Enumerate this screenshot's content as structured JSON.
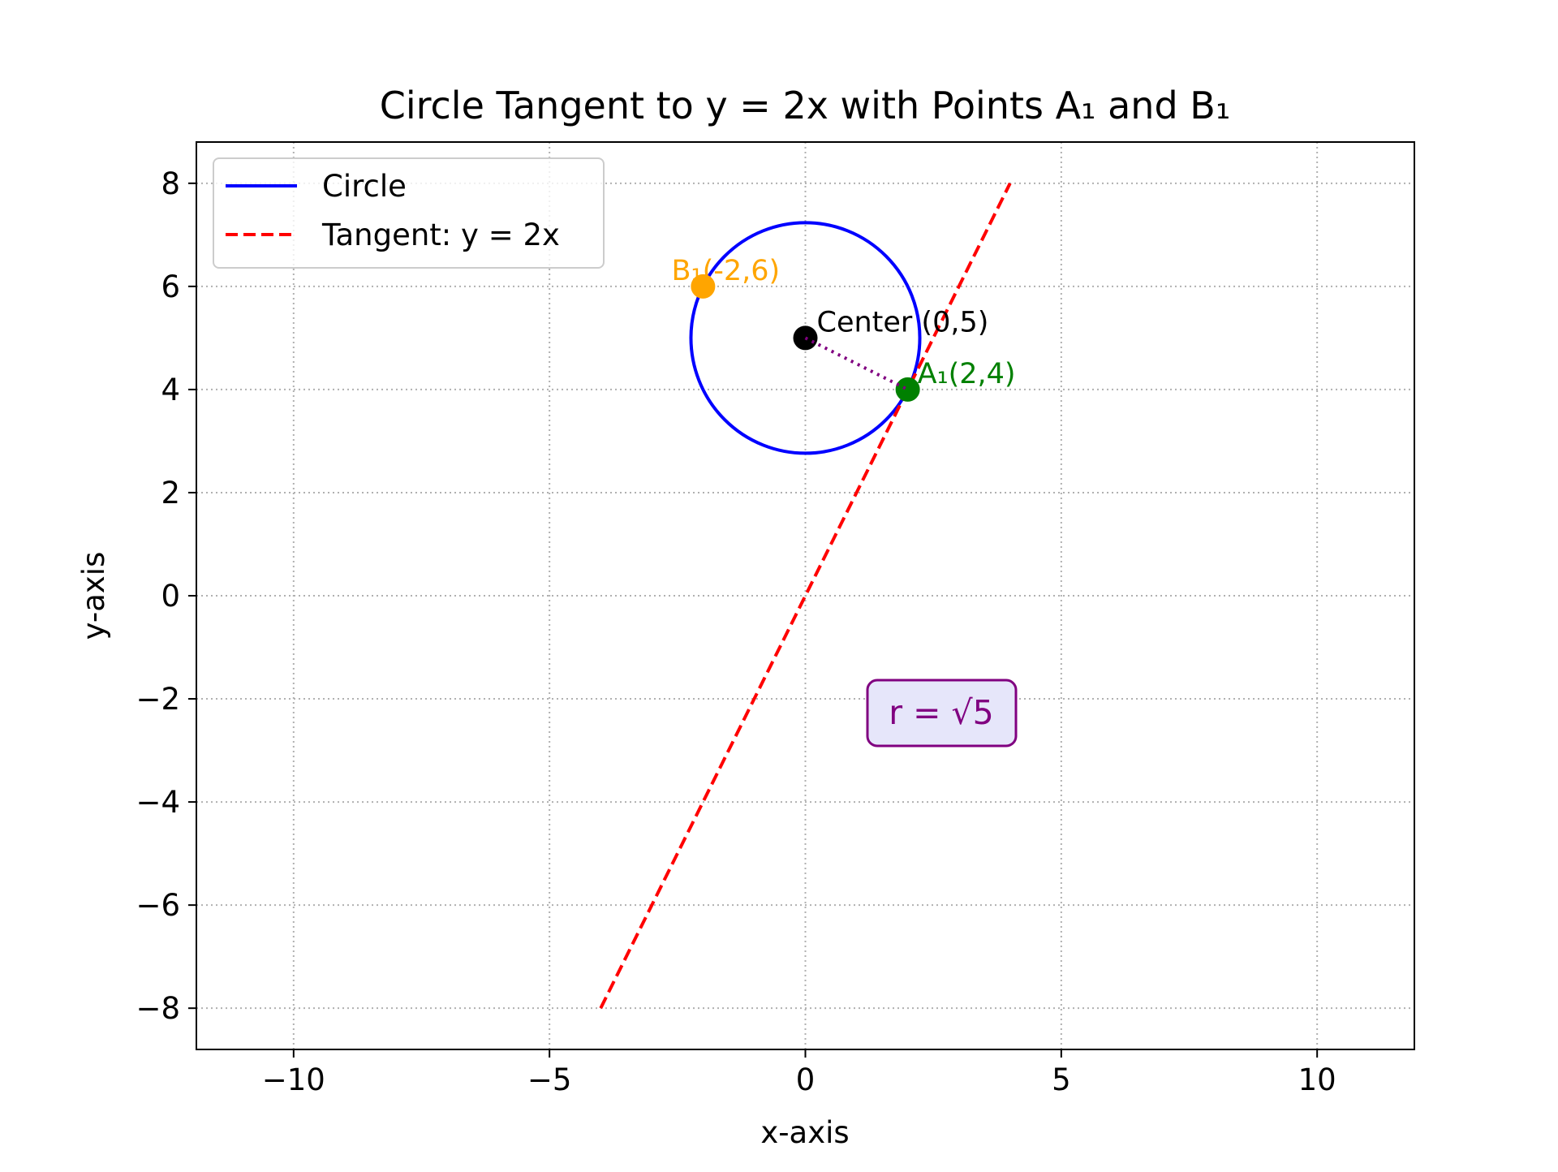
{
  "chart_data": {
    "type": "scatter",
    "title": "Circle Tangent to y = 2x with Points A₁ and B₁",
    "xlabel": "x-axis",
    "ylabel": "y-axis",
    "xlim": [
      -11.9,
      11.9
    ],
    "ylim": [
      -8.8,
      8.8
    ],
    "xticks": [
      -10,
      -5,
      0,
      5,
      10
    ],
    "yticks": [
      -8,
      -6,
      -4,
      -2,
      0,
      2,
      4,
      6,
      8
    ],
    "xtick_labels": [
      "−10",
      "−5",
      "0",
      "5",
      "10"
    ],
    "ytick_labels": [
      "−8",
      "−6",
      "−4",
      "−2",
      "0",
      "2",
      "4",
      "6",
      "8"
    ],
    "grid": true,
    "legend_placement": "upper-left",
    "series": [
      {
        "name": "Circle",
        "kind": "circle",
        "center": [
          0,
          5
        ],
        "radius": 2.236,
        "color": "#0000ff",
        "style": "solid"
      },
      {
        "name": "Tangent: y = 2x",
        "kind": "line",
        "x": [
          -4,
          4
        ],
        "y": [
          -8,
          8
        ],
        "color": "#ff0000",
        "style": "dashed"
      }
    ],
    "radius_segment": {
      "from": [
        0,
        5
      ],
      "to": [
        2,
        4
      ],
      "color": "#800080",
      "style": "dotted"
    },
    "points": [
      {
        "id": "center",
        "x": 0,
        "y": 5,
        "color": "#000000",
        "label": "Center (0,5)"
      },
      {
        "id": "a1",
        "x": 2,
        "y": 4,
        "color": "#008000",
        "label": "A₁(2,4)"
      },
      {
        "id": "b1",
        "x": -2,
        "y": 6,
        "color": "#ffa500",
        "label": "B₁(-2,6)"
      }
    ],
    "annotation": {
      "text": "r = √5",
      "x": 2.7,
      "y": -2.3,
      "text_color": "#800080",
      "box_fill": "#e6e6fa",
      "box_edge": "#800080"
    }
  }
}
